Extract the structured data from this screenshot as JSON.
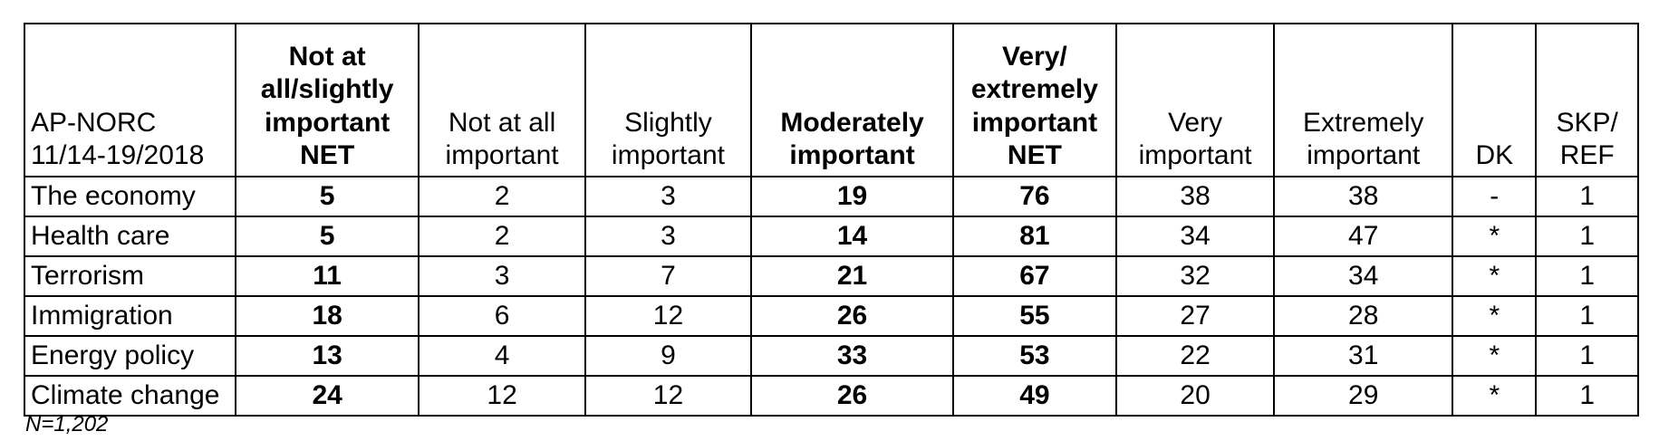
{
  "table": {
    "headers": [
      {
        "lines": [
          "AP-NORC",
          "11/14-19/2018"
        ],
        "bold": false
      },
      {
        "lines": [
          "Not at",
          "all/slightly",
          "important",
          "NET"
        ],
        "bold": true
      },
      {
        "lines": [
          "Not at all",
          "important"
        ],
        "bold": false
      },
      {
        "lines": [
          "Slightly",
          "important"
        ],
        "bold": false
      },
      {
        "lines": [
          "Moderately",
          "important"
        ],
        "bold": true
      },
      {
        "lines": [
          "Very/",
          "extremely",
          "important",
          "NET"
        ],
        "bold": true
      },
      {
        "lines": [
          "Very",
          "important"
        ],
        "bold": false
      },
      {
        "lines": [
          "Extremely",
          "important"
        ],
        "bold": false
      },
      {
        "lines": [
          "DK"
        ],
        "bold": false
      },
      {
        "lines": [
          "SKP/",
          "REF"
        ],
        "bold": false
      }
    ],
    "rows": [
      {
        "label": "The economy",
        "values": [
          "5",
          "2",
          "3",
          "19",
          "76",
          "38",
          "38",
          "-",
          "1"
        ]
      },
      {
        "label": "Health care",
        "values": [
          "5",
          "2",
          "3",
          "14",
          "81",
          "34",
          "47",
          "*",
          "1"
        ]
      },
      {
        "label": "Terrorism",
        "values": [
          "11",
          "3",
          "7",
          "21",
          "67",
          "32",
          "34",
          "*",
          "1"
        ]
      },
      {
        "label": "Immigration",
        "values": [
          "18",
          "6",
          "12",
          "26",
          "55",
          "27",
          "28",
          "*",
          "1"
        ]
      },
      {
        "label": "Energy policy",
        "values": [
          "13",
          "4",
          "9",
          "33",
          "53",
          "22",
          "31",
          "*",
          "1"
        ]
      },
      {
        "label": "Climate change",
        "values": [
          "24",
          "12",
          "12",
          "26",
          "49",
          "20",
          "29",
          "*",
          "1"
        ]
      }
    ]
  },
  "footnote": "N=1,202"
}
